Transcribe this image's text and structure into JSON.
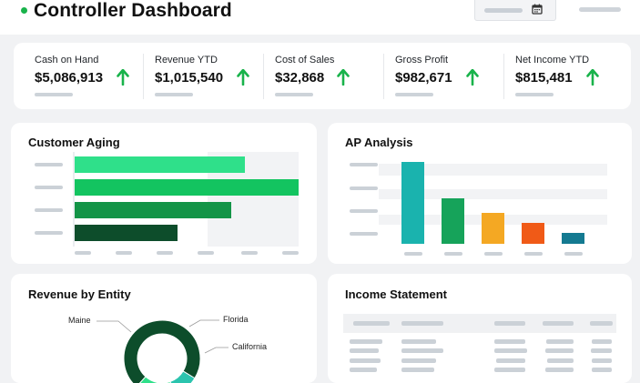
{
  "header": {
    "title": "Controller Dashboard"
  },
  "kpis": [
    {
      "label": "Cash on Hand",
      "value": "$5,086,913",
      "trend": "up"
    },
    {
      "label": "Revenue YTD",
      "value": "$1,015,540",
      "trend": "up"
    },
    {
      "label": "Cost of Sales",
      "value": "$32,868",
      "trend": "up"
    },
    {
      "label": "Gross Profit",
      "value": "$982,671",
      "trend": "up"
    },
    {
      "label": "Net Income YTD",
      "value": "$815,481",
      "trend": "up"
    }
  ],
  "colors": {
    "accent": "#19b34b",
    "trend_up": "#19b34b"
  },
  "panels": {
    "customer_aging": {
      "title": "Customer Aging"
    },
    "ap_analysis": {
      "title": "AP Analysis"
    },
    "revenue_by_entity": {
      "title": "Revenue by Entity",
      "labels": [
        "Maine",
        "Florida",
        "California"
      ]
    },
    "income_statement": {
      "title": "Income Statement"
    }
  },
  "chart_data": [
    {
      "type": "bar",
      "orientation": "horizontal",
      "title": "Customer Aging",
      "values": [
        0.76,
        1.0,
        0.7,
        0.46
      ],
      "colors": [
        "#2fe08a",
        "#13c460",
        "#139447",
        "#0d4d2b"
      ],
      "grid": true
    },
    {
      "type": "bar",
      "title": "AP Analysis",
      "values": [
        1.0,
        0.56,
        0.38,
        0.26,
        0.13
      ],
      "colors": [
        "#1ab3ae",
        "#16a35a",
        "#f4a823",
        "#f05a17",
        "#147a91"
      ],
      "grid": true
    },
    {
      "type": "pie",
      "title": "Revenue by Entity",
      "categories": [
        "Maine",
        "Florida",
        "California"
      ],
      "values": [
        0.72,
        0.11,
        0.17
      ],
      "colors": [
        "#0d4d2b",
        "#2bc4ae",
        "#2fe08a"
      ]
    }
  ]
}
